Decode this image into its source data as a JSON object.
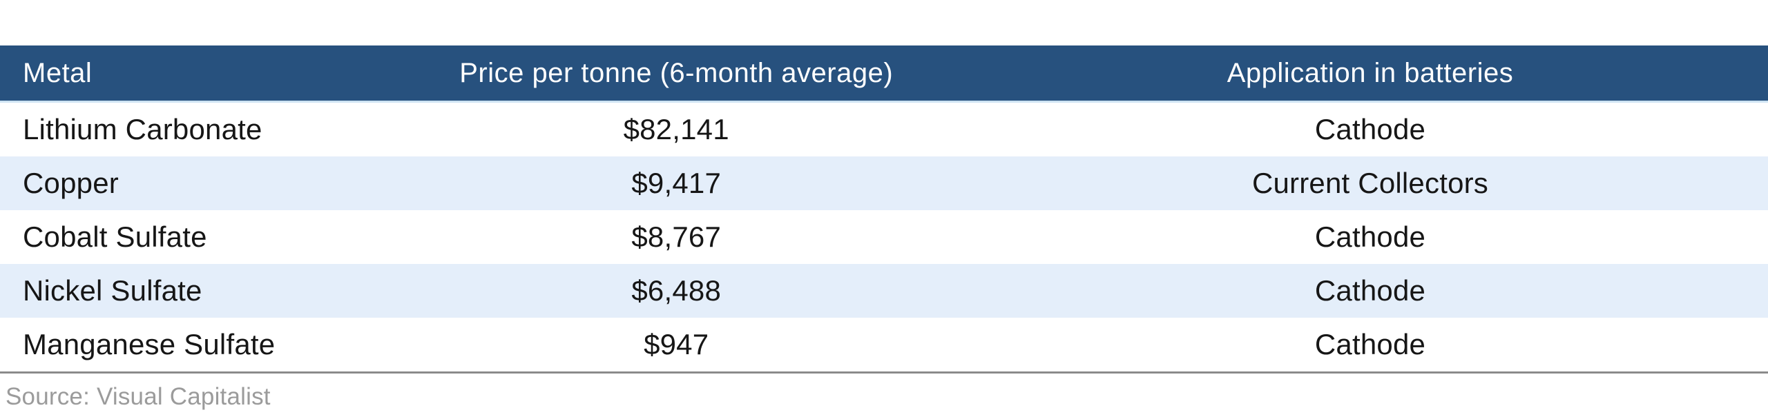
{
  "chart_data": {
    "type": "table",
    "columns": [
      "Metal",
      "Price per tonne (6-month average)",
      "Application in batteries"
    ],
    "rows": [
      [
        "Lithium Carbonate",
        "$82,141",
        "Cathode"
      ],
      [
        "Copper",
        "$9,417",
        "Current Collectors"
      ],
      [
        "Cobalt Sulfate",
        "$8,767",
        "Cathode"
      ],
      [
        "Nickel Sulfate",
        "$6,488",
        "Cathode"
      ],
      [
        "Manganese Sulfate",
        "$947",
        "Cathode"
      ]
    ],
    "source": "Source: Visual Capitalist",
    "layout": {
      "striped": true,
      "header_position": "top",
      "column_alignments": [
        "left",
        "center",
        "center"
      ]
    }
  },
  "colors": {
    "header_background": "#27517E",
    "header_text": "#FFFFFF",
    "stripe_row_background": "#E4EEFA",
    "plain_row_background": "#FFFFFF",
    "header_underline": "#CFE4F3",
    "footer_rule": "#8B8B8B",
    "body_text": "#161616",
    "source_text": "#9B9B9B"
  }
}
